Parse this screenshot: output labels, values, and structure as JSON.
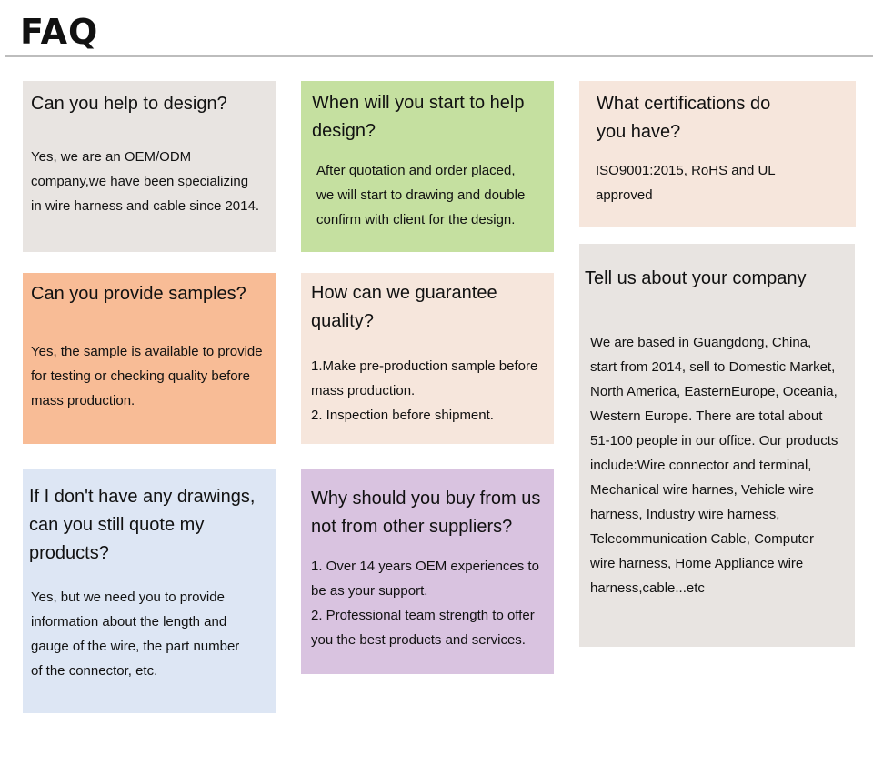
{
  "header": {
    "title": "FAQ"
  },
  "colors": {
    "gray": "#e8e4e1",
    "green": "#c5e0a0",
    "peach": "#f6e6dc",
    "orange": "#f8bc96",
    "blue": "#dde6f4",
    "lavender": "#d9c3e0"
  },
  "faqs": [
    {
      "question": "Can you help to design?",
      "answer": "Yes, we are an OEM/ODM\ncompany,we have been specializing\nin wire harness and cable since 2014."
    },
    {
      "question": "When will you start to help\ndesign?",
      "answer": "After quotation and order placed,\nwe will start to drawing and double\nconfirm with client for the design."
    },
    {
      "question": "What certifications do\nyou have?",
      "answer": "ISO9001:2015, RoHS and UL\napproved"
    },
    {
      "question": "Can you provide samples?",
      "answer": "Yes, the sample is available to provide\nfor testing or checking quality before\nmass production."
    },
    {
      "question": "How can we guarantee\nquality?",
      "answer": "1.Make pre-production sample before\nmass production.\n2. Inspection before shipment."
    },
    {
      "question": "Tell us about your company",
      "answer": "We are based in Guangdong, China,\nstart from 2014, sell to Domestic Market,\nNorth America, EasternEurope, Oceania,\nWestern Europe. There are total about\n51-100 people in our office. Our products\ninclude:Wire connector and terminal,\nMechanical wire harnes, Vehicle wire\nharness, Industry wire harness,\nTelecommunication Cable, Computer\nwire harness, Home Appliance wire\nharness,cable...etc"
    },
    {
      "question": "If I don't have any drawings,\ncan you still quote my\nproducts?",
      "answer": "Yes, but we need you to provide\ninformation about the length and\ngauge of the wire, the part number\nof the connector, etc."
    },
    {
      "question": "Why should you buy from us\nnot from other suppliers?",
      "answer": "1. Over 14 years OEM experiences to\nbe as your support.\n2. Professional team strength to offer\nyou the best products and services."
    }
  ]
}
